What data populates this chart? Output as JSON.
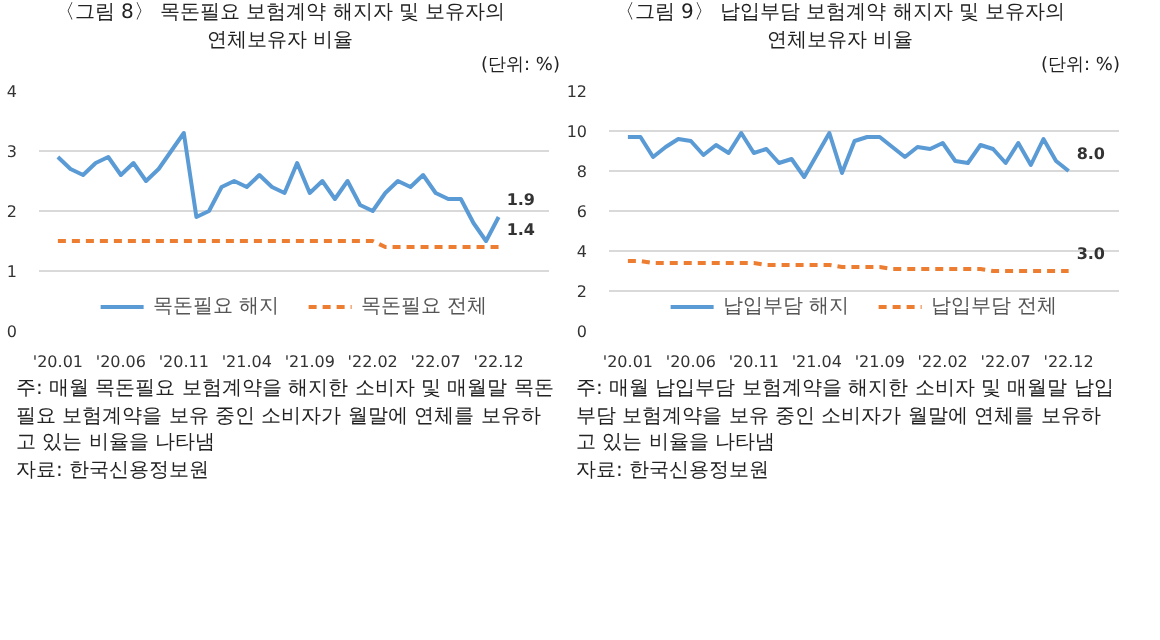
{
  "chart_data": [
    {
      "type": "line",
      "title": "〈그림 8〉 목돈필요 보험계약 해지자 및 보유자의\n연체보유자 비율",
      "subtitle": "(단위: %)",
      "categories": [
        "'20.01",
        null,
        null,
        null,
        null,
        "'20.06",
        null,
        null,
        null,
        null,
        "'20.11",
        null,
        null,
        null,
        null,
        "'21.04",
        null,
        null,
        null,
        null,
        "'21.09",
        null,
        null,
        null,
        null,
        "'22.02",
        null,
        null,
        null,
        null,
        "'22.07",
        null,
        null,
        null,
        null,
        "'22.12"
      ],
      "series": [
        {
          "name": "목돈필요 해지",
          "color": "#5b9bd5",
          "line_style": "solid",
          "values": [
            2.9,
            2.7,
            2.6,
            2.8,
            2.9,
            2.6,
            2.8,
            2.5,
            2.7,
            3.0,
            3.3,
            1.9,
            2.0,
            2.4,
            2.5,
            2.4,
            2.6,
            2.4,
            2.3,
            2.8,
            2.3,
            2.5,
            2.2,
            2.5,
            2.1,
            2.0,
            2.3,
            2.5,
            2.4,
            2.6,
            2.3,
            2.2,
            2.2,
            1.8,
            1.5,
            1.9
          ],
          "value_labels": [
            null,
            null,
            null,
            null,
            null,
            null,
            null,
            null,
            null,
            null,
            null,
            null,
            null,
            null,
            null,
            null,
            null,
            null,
            null,
            null,
            null,
            null,
            null,
            null,
            null,
            null,
            null,
            null,
            null,
            null,
            null,
            null,
            null,
            null,
            null,
            "1.9"
          ]
        },
        {
          "name": "목돈필요 전체",
          "color": "#ed7d31",
          "line_style": "dashed",
          "values": [
            1.5,
            1.5,
            1.5,
            1.5,
            1.5,
            1.5,
            1.5,
            1.5,
            1.5,
            1.5,
            1.5,
            1.5,
            1.5,
            1.5,
            1.5,
            1.5,
            1.5,
            1.5,
            1.5,
            1.5,
            1.5,
            1.5,
            1.5,
            1.5,
            1.5,
            1.5,
            1.4,
            1.4,
            1.4,
            1.4,
            1.4,
            1.4,
            1.4,
            1.4,
            1.4,
            1.4
          ],
          "value_labels": [
            null,
            null,
            null,
            null,
            null,
            null,
            null,
            null,
            null,
            null,
            null,
            null,
            null,
            null,
            null,
            null,
            null,
            null,
            null,
            null,
            null,
            null,
            null,
            null,
            null,
            null,
            null,
            null,
            null,
            null,
            null,
            null,
            null,
            null,
            null,
            "1.4"
          ]
        }
      ],
      "ylim": [
        0,
        4
      ],
      "yticks": [
        0,
        1,
        2,
        3,
        4
      ],
      "grid": "y",
      "legend": "bottom",
      "annotations": [
        "주: 매월 목돈필요 보험계약을 해지한 소비자 및 매월말 목돈필요\n보험계약을 보유 중인 소비자가 월말에 연체를 보유하고 있는\n비율을 나타냄",
        "자료: 한국신용정보원"
      ]
    },
    {
      "type": "line",
      "title": "〈그림 9〉 납입부담 보험계약 해지자 및 보유자의\n연체보유자 비율",
      "subtitle": "(단위: %)",
      "categories": [
        "'20.01",
        null,
        null,
        null,
        null,
        "'20.06",
        null,
        null,
        null,
        null,
        "'20.11",
        null,
        null,
        null,
        null,
        "'21.04",
        null,
        null,
        null,
        null,
        "'21.09",
        null,
        null,
        null,
        null,
        "'22.02",
        null,
        null,
        null,
        null,
        "'22.07",
        null,
        null,
        null,
        null,
        "'22.12"
      ],
      "series": [
        {
          "name": "납입부담 해지",
          "color": "#5b9bd5",
          "line_style": "solid",
          "values": [
            9.7,
            9.7,
            8.7,
            9.2,
            9.6,
            9.5,
            8.8,
            9.3,
            8.9,
            9.9,
            8.9,
            9.1,
            8.4,
            8.6,
            7.7,
            8.8,
            9.9,
            7.9,
            9.5,
            9.7,
            9.7,
            9.2,
            8.7,
            9.2,
            9.1,
            9.4,
            8.5,
            8.4,
            9.3,
            9.1,
            8.4,
            9.4,
            8.3,
            9.6,
            8.5,
            8.0
          ],
          "value_labels": [
            null,
            null,
            null,
            null,
            null,
            null,
            null,
            null,
            null,
            null,
            null,
            null,
            null,
            null,
            null,
            null,
            null,
            null,
            null,
            null,
            null,
            null,
            null,
            null,
            null,
            null,
            null,
            null,
            null,
            null,
            null,
            null,
            null,
            null,
            null,
            "8.0"
          ]
        },
        {
          "name": "납입부담 전체",
          "color": "#ed7d31",
          "line_style": "dashed",
          "values": [
            3.5,
            3.5,
            3.4,
            3.4,
            3.4,
            3.4,
            3.4,
            3.4,
            3.4,
            3.4,
            3.4,
            3.3,
            3.3,
            3.3,
            3.3,
            3.3,
            3.3,
            3.2,
            3.2,
            3.2,
            3.2,
            3.1,
            3.1,
            3.1,
            3.1,
            3.1,
            3.1,
            3.1,
            3.1,
            3.0,
            3.0,
            3.0,
            3.0,
            3.0,
            3.0,
            3.0
          ],
          "value_labels": [
            null,
            null,
            null,
            null,
            null,
            null,
            null,
            null,
            null,
            null,
            null,
            null,
            null,
            null,
            null,
            null,
            null,
            null,
            null,
            null,
            null,
            null,
            null,
            null,
            null,
            null,
            null,
            null,
            null,
            null,
            null,
            null,
            null,
            null,
            null,
            "3.0"
          ]
        }
      ],
      "ylim": [
        0,
        12
      ],
      "yticks": [
        0,
        2,
        4,
        6,
        8,
        10,
        12
      ],
      "grid": "y",
      "legend": "bottom",
      "annotations": [
        "주: 매월 납입부담 보험계약을 해지한 소비자 및 매월말 납입부담\n보험계약을 보유 중인 소비자가 월말에 연체를 보유하고 있는\n비율을 나타냄",
        "자료: 한국신용정보원"
      ]
    }
  ]
}
